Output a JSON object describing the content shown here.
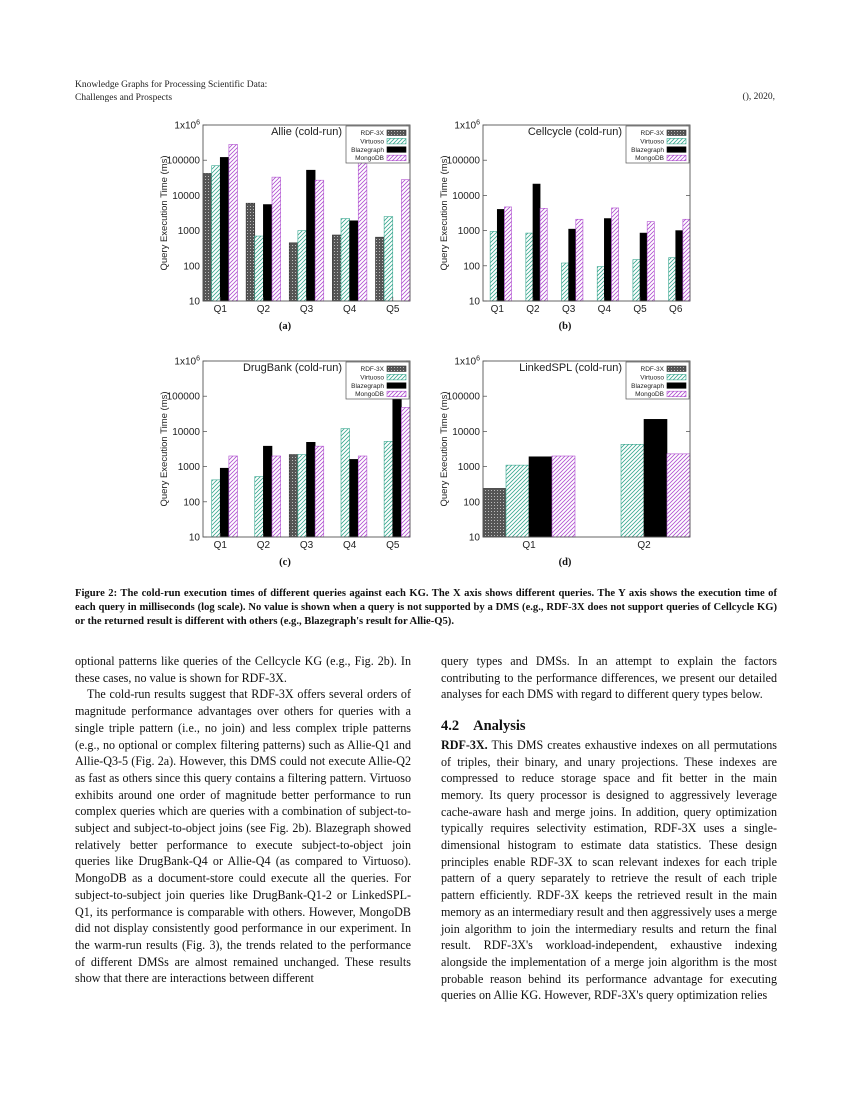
{
  "header": {
    "title_line1": "Knowledge Graphs for Processing Scientific Data:",
    "title_line2": "Challenges and Prospects",
    "right": "(), 2020,"
  },
  "subfigure_labels": [
    "(a)",
    "(b)",
    "(c)",
    "(d)"
  ],
  "caption": {
    "label": "Figure 2:",
    "text": " The cold-run execution times of different queries against each KG. The X axis shows different queries. The Y axis shows the execution time of each query in milliseconds (log scale). No value is shown when a query is not supported by a DMS (e.g., RDF-3X does not support queries of Cellcycle KG) or the returned result is different with others (e.g., Blazegraph's result for Allie-Q5)."
  },
  "left_column": {
    "paragraphs": [
      "optional patterns like queries of the Cellcycle KG (e.g., Fig. 2b). In these cases, no value is shown for RDF-3X.",
      "The cold-run results suggest that RDF-3X offers several orders of magnitude performance advantages over others for queries with a single triple pattern (i.e., no join) and less complex triple patterns (e.g., no optional or complex filtering patterns) such as Allie-Q1 and Allie-Q3-5 (Fig. 2a). However, this DMS could not execute Allie-Q2 as fast as others since this query contains a filtering pattern. Virtuoso exhibits around one order of magnitude better performance to run complex queries which are queries with a combination of subject-to-subject and subject-to-object joins (see Fig. 2b). Blazegraph showed relatively better performance to execute subject-to-object join queries like DrugBank-Q4 or Allie-Q4 (as compared to Virtuoso). MongoDB as a document-store could execute all the queries. For subject-to-subject join queries like DrugBank-Q1-2 or LinkedSPL-Q1, its performance is comparable with others. However, MongoDB did not display consistently good performance in our experiment. In the warm-run results (Fig. 3), the trends related to the performance of different DMSs are almost remained unchanged. These results show that there are interactions between different"
    ]
  },
  "right_column": {
    "intro": "query types and DMSs. In an attempt to explain the factors contributing to the performance differences, we present our detailed analyses for each DMS with regard to different query types below.",
    "section_number": "4.2",
    "section_title": "Analysis",
    "run_in_head": "RDF-3X.",
    "body": " This DMS creates exhaustive indexes on all permutations of triples, their binary, and unary projections. These indexes are compressed to reduce storage space and fit better in the main memory. Its query processor is designed to aggressively leverage cache-aware hash and merge joins. In addition, query optimization typically requires selectivity estimation, RDF-3X uses a single-dimensional histogram to estimate data statistics. These design principles enable RDF-3X to scan relevant indexes for each triple pattern of a query separately to retrieve the result of each triple pattern efficiently. RDF-3X keeps the retrieved result in the main memory as an intermediary result and then aggressively uses a merge join algorithm to join the intermediary results and return the final result. RDF-3X's workload-independent, exhaustive indexing alongside the implementation of a merge join algorithm is the most probable reason behind its performance advantage for executing queries on Allie KG. However, RDF-3X's query optimization relies"
  },
  "colors": {
    "RDF-3X": "#555555",
    "Virtuoso": "#3aa890",
    "Blazegraph": "#000000",
    "MongoDB": "#b050d0"
  },
  "chart_data": [
    {
      "type": "bar",
      "title": "Allie (cold-run)",
      "xlabel": "",
      "ylabel": "Query Execution Time (ms)",
      "yscale": "log",
      "ylim": [
        10,
        1000000
      ],
      "yticks": [
        "10",
        "100",
        "1000",
        "10000",
        "100000",
        "1x10^6"
      ],
      "legend": "top-right",
      "categories": [
        "Q1",
        "Q2",
        "Q3",
        "Q4",
        "Q5"
      ],
      "series": [
        {
          "name": "RDF-3X",
          "values": [
            42000,
            6000,
            450,
            750,
            650
          ]
        },
        {
          "name": "Virtuoso",
          "values": [
            70000,
            700,
            1000,
            2200,
            2500
          ]
        },
        {
          "name": "Blazegraph",
          "values": [
            120000,
            5500,
            52000,
            1900,
            null
          ]
        },
        {
          "name": "MongoDB",
          "values": [
            280000,
            33000,
            27000,
            90000,
            28000
          ]
        }
      ]
    },
    {
      "type": "bar",
      "title": "Cellcycle (cold-run)",
      "xlabel": "",
      "ylabel": "Query Execution Time (ms)",
      "yscale": "log",
      "ylim": [
        10,
        1000000
      ],
      "yticks": [
        "10",
        "100",
        "1000",
        "10000",
        "100000",
        "1x10^6"
      ],
      "legend": "top-right",
      "categories": [
        "Q1",
        "Q2",
        "Q3",
        "Q4",
        "Q5",
        "Q6"
      ],
      "series": [
        {
          "name": "RDF-3X",
          "values": [
            null,
            null,
            null,
            null,
            null,
            null
          ]
        },
        {
          "name": "Virtuoso",
          "values": [
            950,
            850,
            120,
            95,
            150,
            170
          ]
        },
        {
          "name": "Blazegraph",
          "values": [
            4000,
            21000,
            1100,
            2200,
            850,
            1000
          ]
        },
        {
          "name": "MongoDB",
          "values": [
            4700,
            4300,
            2100,
            4400,
            1800,
            2100
          ]
        }
      ]
    },
    {
      "type": "bar",
      "title": "DrugBank (cold-run)",
      "xlabel": "",
      "ylabel": "Query Execution Time (ms)",
      "yscale": "log",
      "ylim": [
        10,
        1000000
      ],
      "yticks": [
        "10",
        "100",
        "1000",
        "10000",
        "100000",
        "1x10^6"
      ],
      "legend": "top-right",
      "categories": [
        "Q1",
        "Q2",
        "Q3",
        "Q4",
        "Q5"
      ],
      "series": [
        {
          "name": "RDF-3X",
          "values": [
            null,
            null,
            2200,
            null,
            null
          ]
        },
        {
          "name": "Virtuoso",
          "values": [
            420,
            520,
            2200,
            12000,
            5200
          ]
        },
        {
          "name": "Blazegraph",
          "values": [
            900,
            3800,
            4900,
            1600,
            120000
          ]
        },
        {
          "name": "MongoDB",
          "values": [
            2000,
            2000,
            3800,
            2000,
            48000
          ]
        }
      ]
    },
    {
      "type": "bar",
      "title": "LinkedSPL (cold-run)",
      "xlabel": "",
      "ylabel": "Query Execution Time (ms)",
      "yscale": "log",
      "ylim": [
        10,
        1000000
      ],
      "yticks": [
        "10",
        "100",
        "1000",
        "10000",
        "100000",
        "1x10^6"
      ],
      "legend": "top-right",
      "categories": [
        "Q1",
        "Q2"
      ],
      "series": [
        {
          "name": "RDF-3X",
          "values": [
            240,
            null
          ]
        },
        {
          "name": "Virtuoso",
          "values": [
            1100,
            4300
          ]
        },
        {
          "name": "Blazegraph",
          "values": [
            1900,
            22000
          ]
        },
        {
          "name": "MongoDB",
          "values": [
            2000,
            2300
          ]
        }
      ]
    }
  ]
}
